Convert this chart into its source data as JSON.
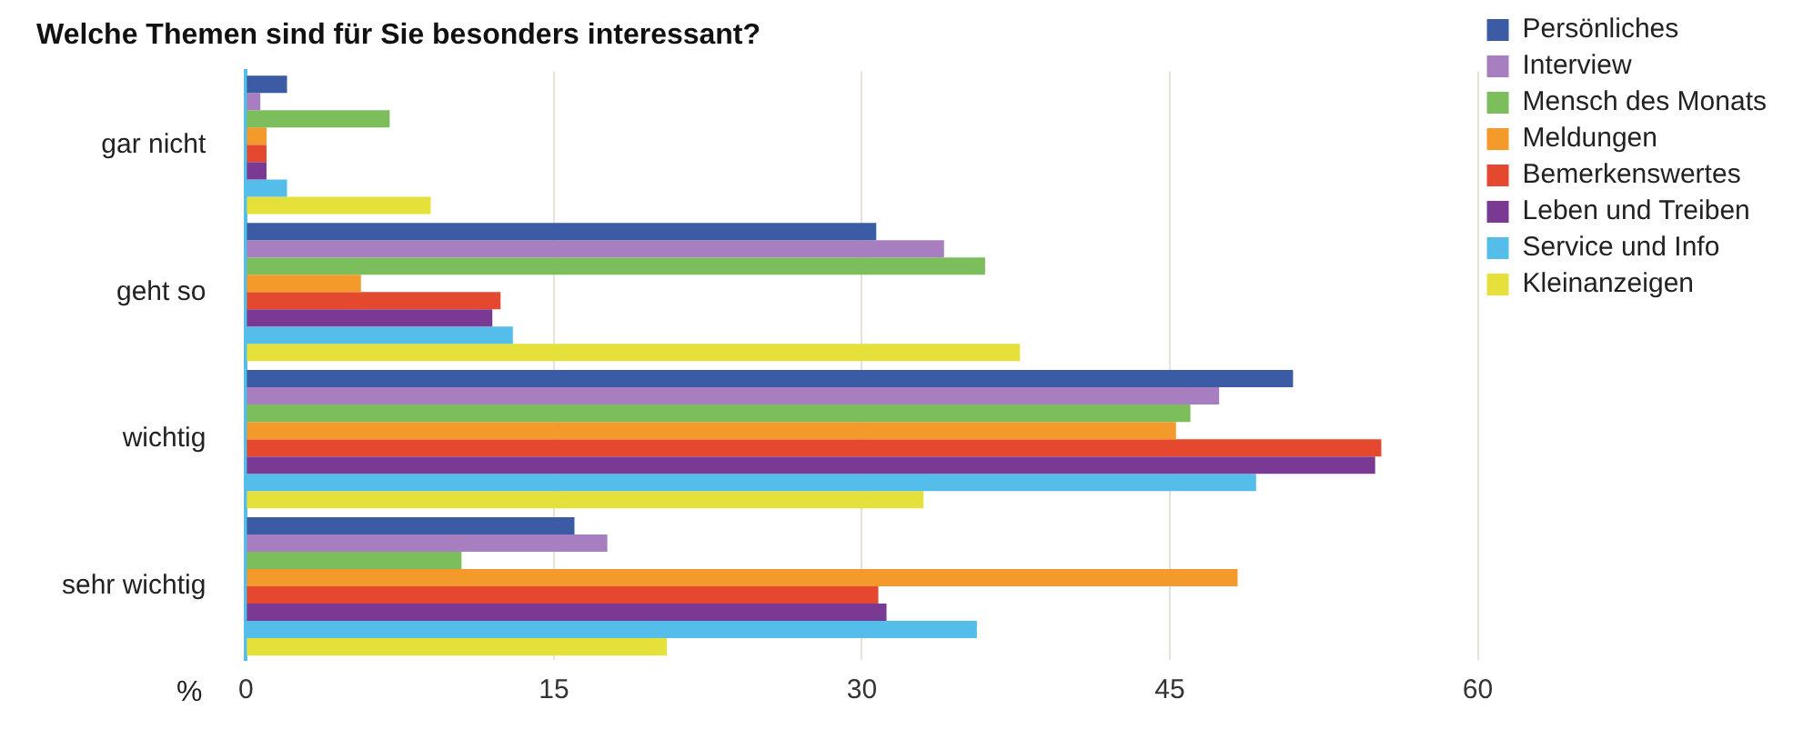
{
  "chart_data": {
    "type": "bar",
    "orientation": "horizontal",
    "title": "Welche Themen sind für Sie besonders interessant?",
    "xlabel": "%",
    "categories": [
      "gar nicht",
      "geht so",
      "wichtig",
      "sehr wichtig"
    ],
    "series": [
      {
        "name": "Persönliches",
        "color": "#3b5ba5",
        "values": [
          2,
          30.7,
          51,
          16
        ]
      },
      {
        "name": "Interview",
        "color": "#a77fc0",
        "values": [
          0.7,
          34,
          47.4,
          17.6
        ]
      },
      {
        "name": "Mensch des Monats",
        "color": "#7cbd5c",
        "values": [
          7,
          36,
          46,
          10.5
        ]
      },
      {
        "name": "Meldungen",
        "color": "#f39a2a",
        "values": [
          1,
          5.6,
          45.3,
          48.3
        ]
      },
      {
        "name": "Bemerkenswertes",
        "color": "#e4482f",
        "values": [
          1,
          12.4,
          55.3,
          30.8
        ]
      },
      {
        "name": "Leben und Treiben",
        "color": "#7a3a93",
        "values": [
          1,
          12,
          55,
          31.2
        ]
      },
      {
        "name": "Service und Info",
        "color": "#55bde9",
        "values": [
          2,
          13,
          49.2,
          35.6
        ]
      },
      {
        "name": "Kleinanzeigen",
        "color": "#e6e13a",
        "values": [
          9,
          37.7,
          33,
          20.5
        ]
      }
    ],
    "xlim": [
      0,
      60
    ],
    "xticks": [
      0,
      15,
      30,
      45,
      60
    ],
    "grid": "x",
    "legend": "top right"
  }
}
